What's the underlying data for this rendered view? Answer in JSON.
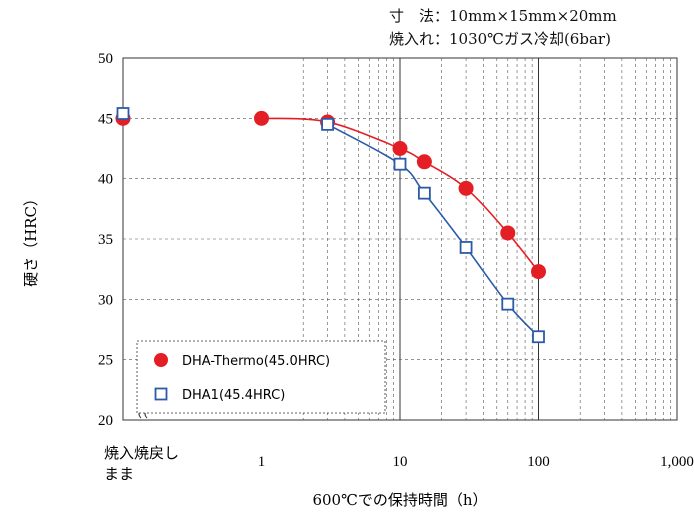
{
  "notes": [
    "寸　法：10mm×15mm×20mm",
    "焼入れ：1030℃ガス冷却(6bar)"
  ],
  "chart_data": {
    "type": "scatter",
    "title": "",
    "xlabel": "600℃での保持時間（h）",
    "ylabel": "硬さ（HRC）",
    "x_scale": "log",
    "xlim": [
      0.1,
      1000
    ],
    "ylim": [
      20,
      50
    ],
    "x_special_label": "焼入焼戻しまま",
    "x_tick_labels": [
      "1",
      "10",
      "100",
      "1,000"
    ],
    "y_ticks": [
      20,
      25,
      30,
      35,
      40,
      45,
      50
    ],
    "grid": true,
    "legend": "inside-bottom-left",
    "series": [
      {
        "name": "DHA-Thermo(45.0HRC)",
        "color": "#e31e24",
        "marker": "filled-circle",
        "x": [
          "焼入焼戻しまま",
          1,
          3,
          10,
          15,
          30,
          60,
          100
        ],
        "y": [
          45.0,
          45.0,
          44.7,
          42.5,
          41.4,
          39.2,
          35.5,
          32.3
        ]
      },
      {
        "name": "DHA1(45.4HRC)",
        "color": "#2b5ba8",
        "marker": "open-square",
        "x": [
          "焼入焼戻しまま",
          3,
          10,
          15,
          30,
          60,
          100
        ],
        "y": [
          45.4,
          44.5,
          41.2,
          38.8,
          34.3,
          29.6,
          26.9
        ]
      }
    ]
  }
}
